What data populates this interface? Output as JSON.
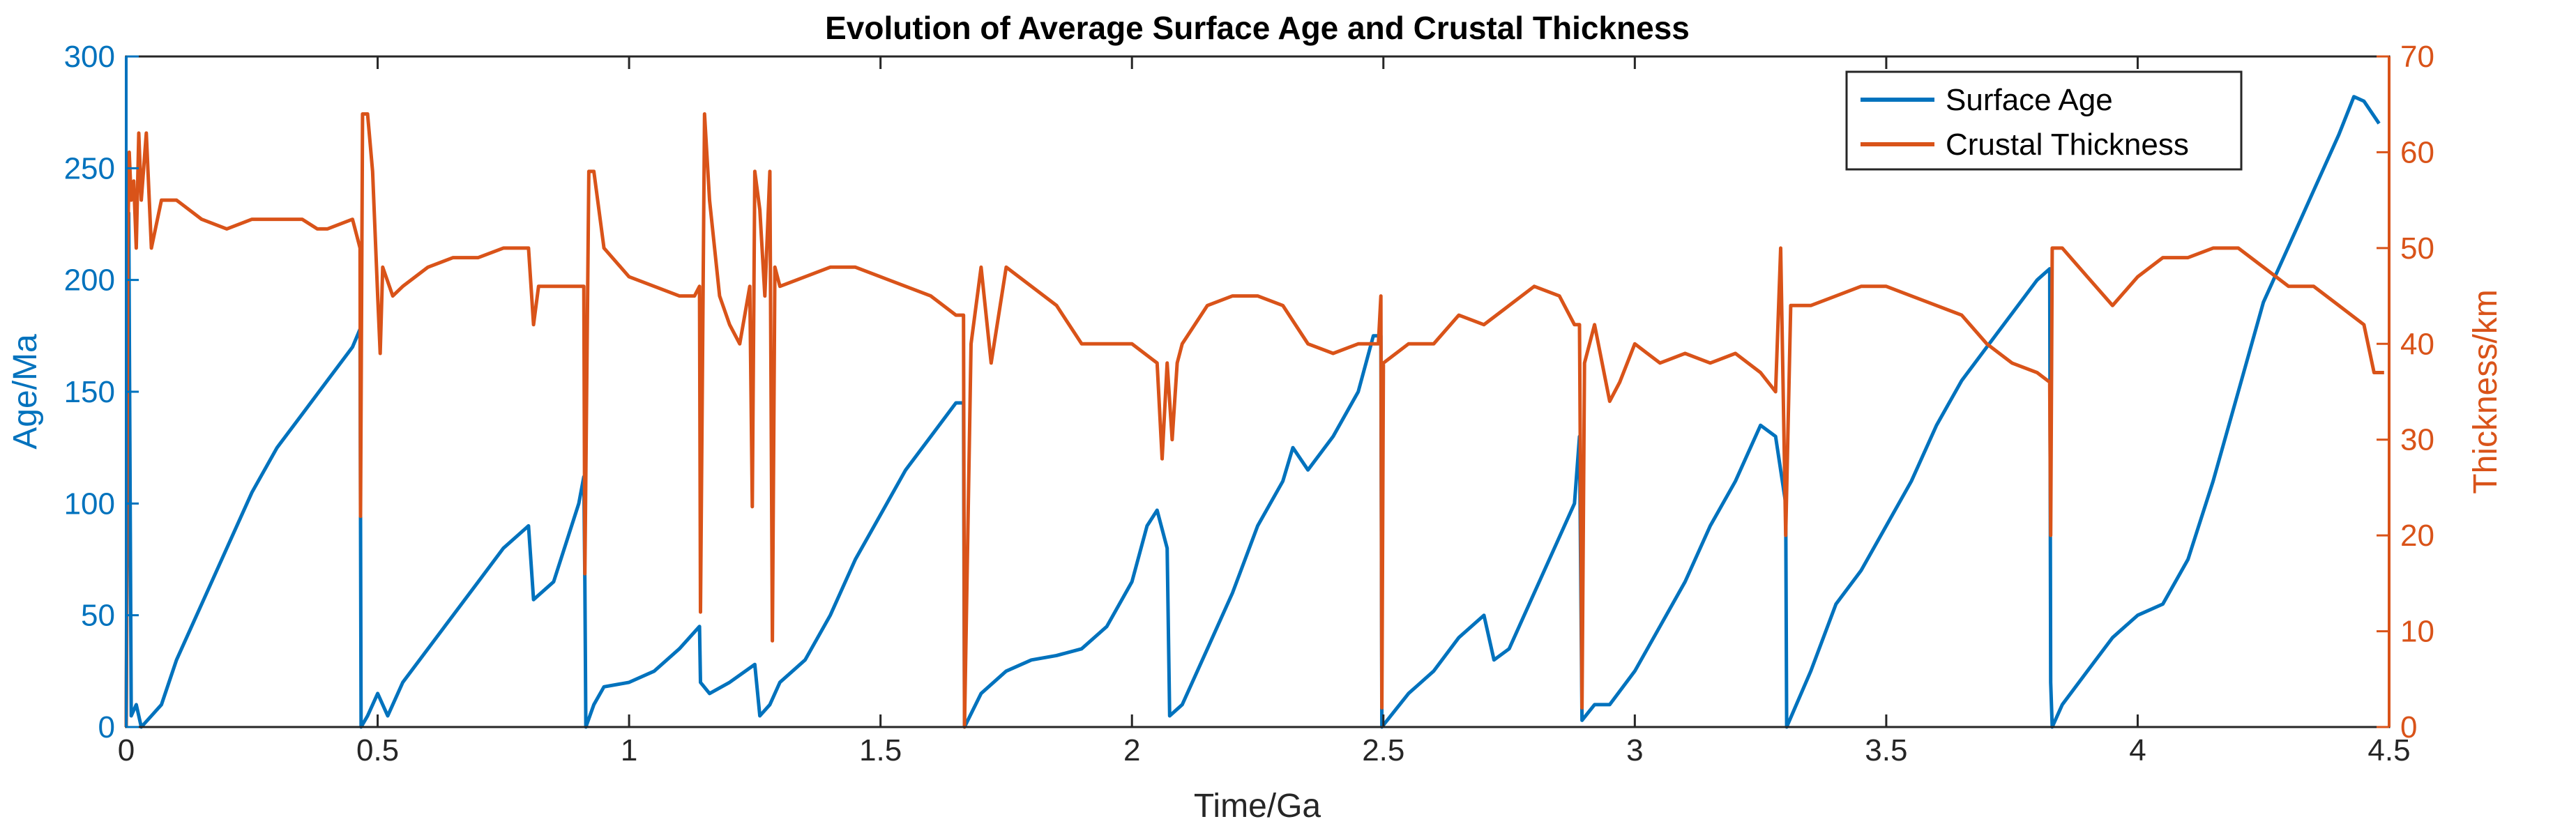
{
  "colors": {
    "age": "#0072BD",
    "thickness": "#D95319",
    "axis": "#262626"
  },
  "chart_data": {
    "type": "line",
    "title": "Evolution of Average Surface Age and Crustal Thickness",
    "xlabel": "Time/Ga",
    "ylabel_left": "Age/Ma",
    "ylabel_right": "Thickness/km",
    "xlim": [
      0,
      4.5
    ],
    "ylim_left": [
      0,
      300
    ],
    "ylim_right": [
      0,
      70
    ],
    "xticks": [
      "0",
      "0.5",
      "1",
      "1.5",
      "2",
      "2.5",
      "3",
      "3.5",
      "4",
      "4.5"
    ],
    "yticks_left": [
      "0",
      "50",
      "100",
      "150",
      "200",
      "250",
      "300"
    ],
    "yticks_right": [
      "0",
      "10",
      "20",
      "30",
      "40",
      "50",
      "60",
      "70"
    ],
    "grid": false,
    "legend_position": "top-right",
    "series": [
      {
        "name": "Surface Age",
        "axis": "left",
        "color": "#0072BD",
        "points": [
          [
            0,
            0
          ],
          [
            0.005,
            230
          ],
          [
            0.01,
            5
          ],
          [
            0.02,
            10
          ],
          [
            0.03,
            0
          ],
          [
            0.05,
            5
          ],
          [
            0.07,
            10
          ],
          [
            0.1,
            30
          ],
          [
            0.15,
            55
          ],
          [
            0.2,
            80
          ],
          [
            0.25,
            105
          ],
          [
            0.3,
            125
          ],
          [
            0.35,
            140
          ],
          [
            0.4,
            155
          ],
          [
            0.45,
            170
          ],
          [
            0.465,
            178
          ],
          [
            0.466,
            95
          ],
          [
            0.467,
            0
          ],
          [
            0.48,
            5
          ],
          [
            0.5,
            15
          ],
          [
            0.52,
            5
          ],
          [
            0.55,
            20
          ],
          [
            0.6,
            35
          ],
          [
            0.65,
            50
          ],
          [
            0.7,
            65
          ],
          [
            0.75,
            80
          ],
          [
            0.8,
            90
          ],
          [
            0.81,
            57
          ],
          [
            0.85,
            65
          ],
          [
            0.9,
            100
          ],
          [
            0.91,
            112
          ],
          [
            0.912,
            65
          ],
          [
            0.914,
            0
          ],
          [
            0.93,
            10
          ],
          [
            0.95,
            18
          ],
          [
            1.0,
            20
          ],
          [
            1.05,
            25
          ],
          [
            1.1,
            35
          ],
          [
            1.14,
            45
          ],
          [
            1.142,
            20
          ],
          [
            1.16,
            15
          ],
          [
            1.2,
            20
          ],
          [
            1.25,
            28
          ],
          [
            1.26,
            5
          ],
          [
            1.28,
            10
          ],
          [
            1.3,
            20
          ],
          [
            1.35,
            30
          ],
          [
            1.4,
            50
          ],
          [
            1.45,
            75
          ],
          [
            1.5,
            95
          ],
          [
            1.55,
            115
          ],
          [
            1.6,
            130
          ],
          [
            1.65,
            145
          ],
          [
            1.665,
            145
          ],
          [
            1.667,
            0
          ],
          [
            1.7,
            15
          ],
          [
            1.75,
            25
          ],
          [
            1.8,
            30
          ],
          [
            1.85,
            32
          ],
          [
            1.9,
            35
          ],
          [
            1.95,
            45
          ],
          [
            2.0,
            65
          ],
          [
            2.03,
            90
          ],
          [
            2.05,
            97
          ],
          [
            2.07,
            80
          ],
          [
            2.075,
            5
          ],
          [
            2.1,
            10
          ],
          [
            2.15,
            35
          ],
          [
            2.2,
            60
          ],
          [
            2.25,
            90
          ],
          [
            2.3,
            110
          ],
          [
            2.32,
            125
          ],
          [
            2.35,
            115
          ],
          [
            2.4,
            130
          ],
          [
            2.45,
            150
          ],
          [
            2.48,
            175
          ],
          [
            2.495,
            175
          ],
          [
            2.497,
            0
          ],
          [
            2.55,
            15
          ],
          [
            2.6,
            25
          ],
          [
            2.65,
            40
          ],
          [
            2.7,
            50
          ],
          [
            2.72,
            30
          ],
          [
            2.75,
            35
          ],
          [
            2.8,
            60
          ],
          [
            2.85,
            85
          ],
          [
            2.88,
            100
          ],
          [
            2.89,
            130
          ],
          [
            2.895,
            3
          ],
          [
            2.92,
            10
          ],
          [
            2.95,
            10
          ],
          [
            3.0,
            25
          ],
          [
            3.05,
            45
          ],
          [
            3.1,
            65
          ],
          [
            3.15,
            90
          ],
          [
            3.2,
            110
          ],
          [
            3.25,
            135
          ],
          [
            3.28,
            130
          ],
          [
            3.3,
            100
          ],
          [
            3.302,
            0
          ],
          [
            3.35,
            25
          ],
          [
            3.4,
            55
          ],
          [
            3.45,
            70
          ],
          [
            3.5,
            90
          ],
          [
            3.55,
            110
          ],
          [
            3.6,
            135
          ],
          [
            3.65,
            155
          ],
          [
            3.7,
            170
          ],
          [
            3.75,
            185
          ],
          [
            3.8,
            200
          ],
          [
            3.825,
            205
          ],
          [
            3.827,
            20
          ],
          [
            3.83,
            0
          ],
          [
            3.85,
            10
          ],
          [
            3.9,
            25
          ],
          [
            3.95,
            40
          ],
          [
            4.0,
            50
          ],
          [
            4.05,
            55
          ],
          [
            4.1,
            75
          ],
          [
            4.15,
            110
          ],
          [
            4.2,
            150
          ],
          [
            4.25,
            190
          ],
          [
            4.3,
            215
          ],
          [
            4.35,
            240
          ],
          [
            4.4,
            265
          ],
          [
            4.43,
            282
          ],
          [
            4.45,
            280
          ],
          [
            4.48,
            270
          ]
        ]
      },
      {
        "name": "Crustal Thickness",
        "axis": "right",
        "color": "#D95319",
        "points": [
          [
            0,
            0
          ],
          [
            0.003,
            50
          ],
          [
            0.006,
            60
          ],
          [
            0.01,
            55
          ],
          [
            0.015,
            57
          ],
          [
            0.02,
            50
          ],
          [
            0.025,
            62
          ],
          [
            0.03,
            55
          ],
          [
            0.04,
            62
          ],
          [
            0.05,
            50
          ],
          [
            0.07,
            55
          ],
          [
            0.1,
            55
          ],
          [
            0.15,
            53
          ],
          [
            0.2,
            52
          ],
          [
            0.25,
            53
          ],
          [
            0.3,
            53
          ],
          [
            0.35,
            53
          ],
          [
            0.38,
            52
          ],
          [
            0.4,
            52
          ],
          [
            0.45,
            53
          ],
          [
            0.465,
            50
          ],
          [
            0.466,
            22
          ],
          [
            0.47,
            64
          ],
          [
            0.48,
            64
          ],
          [
            0.49,
            58
          ],
          [
            0.5,
            45
          ],
          [
            0.505,
            39
          ],
          [
            0.51,
            48
          ],
          [
            0.53,
            45
          ],
          [
            0.55,
            46
          ],
          [
            0.6,
            48
          ],
          [
            0.65,
            49
          ],
          [
            0.7,
            49
          ],
          [
            0.75,
            50
          ],
          [
            0.8,
            50
          ],
          [
            0.81,
            42
          ],
          [
            0.82,
            46
          ],
          [
            0.85,
            46
          ],
          [
            0.9,
            46
          ],
          [
            0.91,
            46
          ],
          [
            0.912,
            16
          ],
          [
            0.92,
            58
          ],
          [
            0.93,
            58
          ],
          [
            0.95,
            50
          ],
          [
            1.0,
            47
          ],
          [
            1.05,
            46
          ],
          [
            1.1,
            45
          ],
          [
            1.13,
            45
          ],
          [
            1.14,
            46
          ],
          [
            1.142,
            12
          ],
          [
            1.15,
            64
          ],
          [
            1.16,
            55
          ],
          [
            1.18,
            45
          ],
          [
            1.2,
            42
          ],
          [
            1.22,
            40
          ],
          [
            1.24,
            46
          ],
          [
            1.245,
            23
          ],
          [
            1.25,
            58
          ],
          [
            1.26,
            54
          ],
          [
            1.27,
            45
          ],
          [
            1.28,
            58
          ],
          [
            1.285,
            9
          ],
          [
            1.29,
            48
          ],
          [
            1.3,
            46
          ],
          [
            1.35,
            47
          ],
          [
            1.4,
            48
          ],
          [
            1.45,
            48
          ],
          [
            1.5,
            47
          ],
          [
            1.55,
            46
          ],
          [
            1.6,
            45
          ],
          [
            1.65,
            43
          ],
          [
            1.665,
            43
          ],
          [
            1.667,
            0
          ],
          [
            1.68,
            40
          ],
          [
            1.7,
            48
          ],
          [
            1.72,
            38
          ],
          [
            1.75,
            48
          ],
          [
            1.8,
            46
          ],
          [
            1.85,
            44
          ],
          [
            1.9,
            40
          ],
          [
            1.95,
            40
          ],
          [
            2.0,
            40
          ],
          [
            2.05,
            38
          ],
          [
            2.06,
            28
          ],
          [
            2.07,
            38
          ],
          [
            2.08,
            30
          ],
          [
            2.09,
            38
          ],
          [
            2.1,
            40
          ],
          [
            2.15,
            44
          ],
          [
            2.2,
            45
          ],
          [
            2.25,
            45
          ],
          [
            2.3,
            44
          ],
          [
            2.35,
            40
          ],
          [
            2.4,
            39
          ],
          [
            2.45,
            40
          ],
          [
            2.49,
            40
          ],
          [
            2.495,
            45
          ],
          [
            2.497,
            2
          ],
          [
            2.5,
            38
          ],
          [
            2.55,
            40
          ],
          [
            2.6,
            40
          ],
          [
            2.65,
            43
          ],
          [
            2.7,
            42
          ],
          [
            2.75,
            44
          ],
          [
            2.8,
            46
          ],
          [
            2.85,
            45
          ],
          [
            2.88,
            42
          ],
          [
            2.89,
            42
          ],
          [
            2.895,
            2
          ],
          [
            2.9,
            38
          ],
          [
            2.92,
            42
          ],
          [
            2.95,
            34
          ],
          [
            2.97,
            36
          ],
          [
            3.0,
            40
          ],
          [
            3.05,
            38
          ],
          [
            3.1,
            39
          ],
          [
            3.15,
            38
          ],
          [
            3.2,
            39
          ],
          [
            3.25,
            37
          ],
          [
            3.28,
            35
          ],
          [
            3.29,
            50
          ],
          [
            3.3,
            20
          ],
          [
            3.31,
            44
          ],
          [
            3.35,
            44
          ],
          [
            3.4,
            45
          ],
          [
            3.45,
            46
          ],
          [
            3.5,
            46
          ],
          [
            3.55,
            45
          ],
          [
            3.6,
            44
          ],
          [
            3.65,
            43
          ],
          [
            3.7,
            40
          ],
          [
            3.75,
            38
          ],
          [
            3.8,
            37
          ],
          [
            3.825,
            36
          ],
          [
            3.827,
            20
          ],
          [
            3.83,
            50
          ],
          [
            3.85,
            50
          ],
          [
            3.9,
            47
          ],
          [
            3.95,
            44
          ],
          [
            4.0,
            47
          ],
          [
            4.05,
            49
          ],
          [
            4.1,
            49
          ],
          [
            4.15,
            50
          ],
          [
            4.2,
            50
          ],
          [
            4.25,
            48
          ],
          [
            4.3,
            46
          ],
          [
            4.35,
            46
          ],
          [
            4.4,
            44
          ],
          [
            4.45,
            42
          ],
          [
            4.47,
            37
          ],
          [
            4.49,
            37
          ]
        ]
      }
    ]
  }
}
